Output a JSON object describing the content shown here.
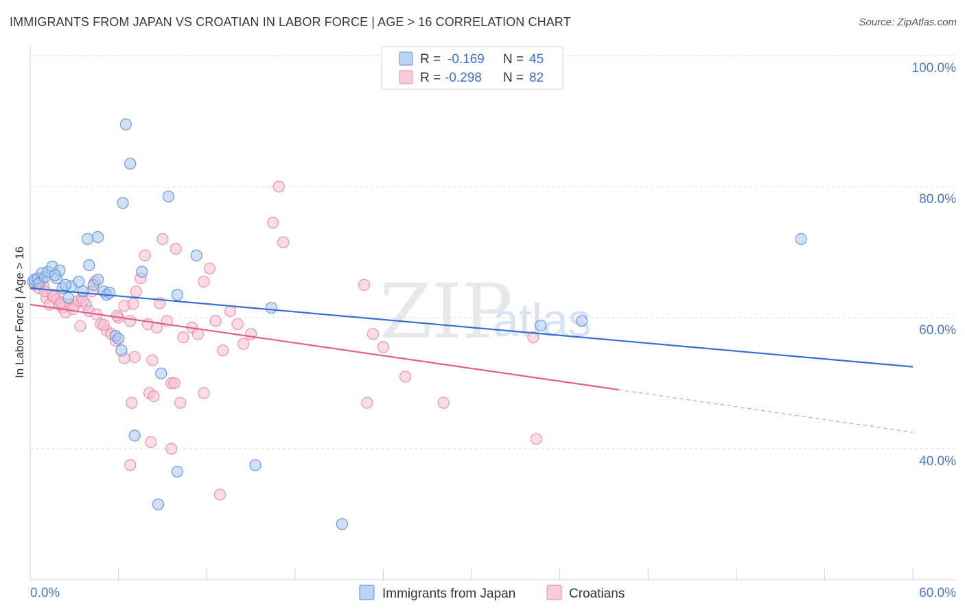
{
  "header": {
    "title": "IMMIGRANTS FROM JAPAN VS CROATIAN IN LABOR FORCE | AGE > 16 CORRELATION CHART",
    "source": "Source: ZipAtlas.com"
  },
  "watermark": {
    "zip": "ZIP",
    "atlas": "atlas"
  },
  "colors": {
    "japan_fill": "#a9c8f0",
    "japan_stroke": "#5b8fd8",
    "japan_line": "#3370d0",
    "croatian_fill": "#f7bfd2",
    "croatian_stroke": "#e889aa",
    "croatian_line": "#e35e8e",
    "tick_text": "#4a78c8",
    "grid": "#d9d9d9"
  },
  "legend": {
    "rows": [
      {
        "r_label": "R =",
        "r_value": "-0.169",
        "n_label": "N =",
        "n_value": "45"
      },
      {
        "r_label": "R =",
        "r_value": "-0.298",
        "n_label": "N =",
        "n_value": "82"
      }
    ]
  },
  "chart_data": {
    "type": "scatter",
    "title": "IMMIGRANTS FROM JAPAN VS CROATIAN IN LABOR FORCE | AGE > 16 CORRELATION CHART",
    "xlabel": "",
    "ylabel": "In Labor Force | Age > 16",
    "xlim": [
      0,
      60
    ],
    "ylim": [
      20,
      102
    ],
    "x_tick_labels": [
      "0.0%",
      "60.0%"
    ],
    "y_ticks": [
      40,
      60,
      80,
      100
    ],
    "y_tick_labels": [
      "40.0%",
      "60.0%",
      "80.0%",
      "100.0%"
    ],
    "legend_bottom": [
      "Immigrants from Japan",
      "Croatians"
    ],
    "series": [
      {
        "name": "Immigrants from Japan",
        "R": -0.169,
        "N": 45,
        "trend": {
          "x": [
            0,
            60
          ],
          "y": [
            64.5,
            52.5
          ],
          "dashed_from": null
        },
        "points": [
          [
            0.2,
            65.5
          ],
          [
            0.3,
            65.8
          ],
          [
            0.5,
            66.0
          ],
          [
            0.6,
            65.2
          ],
          [
            0.8,
            66.8
          ],
          [
            1.0,
            66.2
          ],
          [
            1.2,
            67.0
          ],
          [
            1.5,
            67.8
          ],
          [
            1.8,
            66.0
          ],
          [
            2.0,
            67.2
          ],
          [
            2.2,
            64.5
          ],
          [
            2.6,
            63.0
          ],
          [
            2.8,
            64.8
          ],
          [
            3.3,
            65.5
          ],
          [
            3.6,
            64.0
          ],
          [
            4.0,
            68.0
          ],
          [
            4.3,
            65.0
          ],
          [
            4.6,
            65.8
          ],
          [
            5.0,
            64.0
          ],
          [
            5.2,
            63.5
          ],
          [
            5.4,
            63.8
          ],
          [
            5.8,
            57.2
          ],
          [
            6.0,
            56.8
          ],
          [
            6.2,
            55.0
          ],
          [
            3.9,
            72.0
          ],
          [
            4.6,
            72.3
          ],
          [
            6.3,
            77.5
          ],
          [
            6.5,
            89.5
          ],
          [
            6.8,
            83.5
          ],
          [
            7.6,
            67.0
          ],
          [
            9.4,
            78.5
          ],
          [
            10.0,
            63.5
          ],
          [
            11.3,
            69.5
          ],
          [
            7.1,
            42.0
          ],
          [
            8.9,
            51.5
          ],
          [
            10.0,
            36.5
          ],
          [
            8.7,
            31.5
          ],
          [
            15.3,
            37.5
          ],
          [
            16.4,
            61.5
          ],
          [
            21.2,
            28.5
          ],
          [
            34.7,
            58.8
          ],
          [
            37.5,
            59.5
          ],
          [
            52.4,
            72.0
          ],
          [
            1.7,
            66.5
          ],
          [
            2.4,
            65.0
          ]
        ]
      },
      {
        "name": "Croatians",
        "R": -0.298,
        "N": 82,
        "trend": {
          "x": [
            0,
            60
          ],
          "y": [
            62.0,
            42.5
          ],
          "dashed_from": 40
        },
        "points": [
          [
            0.3,
            65.0
          ],
          [
            0.6,
            64.5
          ],
          [
            0.9,
            64.8
          ],
          [
            1.1,
            63.0
          ],
          [
            1.3,
            62.0
          ],
          [
            1.5,
            63.5
          ],
          [
            1.8,
            62.8
          ],
          [
            2.0,
            62.0
          ],
          [
            2.2,
            61.5
          ],
          [
            2.4,
            60.8
          ],
          [
            2.7,
            62.0
          ],
          [
            3.0,
            61.8
          ],
          [
            3.2,
            62.5
          ],
          [
            3.5,
            63.0
          ],
          [
            3.8,
            62.0
          ],
          [
            4.0,
            61.0
          ],
          [
            4.2,
            64.0
          ],
          [
            4.5,
            60.5
          ],
          [
            4.8,
            59.0
          ],
          [
            5.2,
            58.0
          ],
          [
            5.5,
            57.5
          ],
          [
            5.8,
            56.5
          ],
          [
            6.0,
            60.0
          ],
          [
            6.4,
            61.8
          ],
          [
            6.8,
            59.5
          ],
          [
            7.2,
            64.0
          ],
          [
            7.5,
            66.0
          ],
          [
            7.8,
            69.5
          ],
          [
            8.0,
            59.0
          ],
          [
            8.3,
            53.5
          ],
          [
            8.6,
            58.5
          ],
          [
            9.0,
            72.0
          ],
          [
            9.3,
            59.5
          ],
          [
            9.6,
            50.0
          ],
          [
            9.9,
            70.5
          ],
          [
            10.2,
            47.0
          ],
          [
            11.0,
            58.5
          ],
          [
            11.4,
            57.5
          ],
          [
            11.8,
            65.5
          ],
          [
            12.2,
            67.5
          ],
          [
            12.6,
            59.5
          ],
          [
            13.1,
            55.0
          ],
          [
            14.1,
            59.0
          ],
          [
            14.5,
            56.0
          ],
          [
            15.0,
            57.5
          ],
          [
            16.9,
            80.0
          ],
          [
            16.5,
            74.5
          ],
          [
            17.2,
            71.5
          ],
          [
            7.1,
            54.0
          ],
          [
            6.9,
            47.0
          ],
          [
            8.1,
            48.5
          ],
          [
            8.4,
            48.0
          ],
          [
            9.8,
            50.0
          ],
          [
            11.8,
            48.5
          ],
          [
            9.6,
            40.0
          ],
          [
            8.2,
            41.0
          ],
          [
            6.8,
            37.5
          ],
          [
            12.9,
            33.0
          ],
          [
            22.7,
            65.0
          ],
          [
            23.3,
            57.5
          ],
          [
            24.0,
            55.5
          ],
          [
            25.5,
            51.0
          ],
          [
            22.9,
            47.0
          ],
          [
            28.1,
            47.0
          ],
          [
            34.2,
            57.0
          ],
          [
            34.4,
            41.5
          ],
          [
            1.0,
            64.0
          ],
          [
            1.6,
            63.2
          ],
          [
            2.1,
            62.3
          ],
          [
            2.9,
            61.3
          ],
          [
            3.6,
            62.6
          ],
          [
            0.5,
            65.4
          ],
          [
            5.0,
            58.9
          ],
          [
            5.9,
            60.3
          ],
          [
            6.4,
            53.8
          ],
          [
            7.0,
            62.1
          ],
          [
            3.4,
            58.7
          ],
          [
            4.4,
            65.5
          ],
          [
            8.8,
            62.2
          ],
          [
            10.4,
            57.0
          ],
          [
            13.6,
            61.0
          ],
          [
            0.8,
            65.9
          ]
        ]
      }
    ]
  }
}
